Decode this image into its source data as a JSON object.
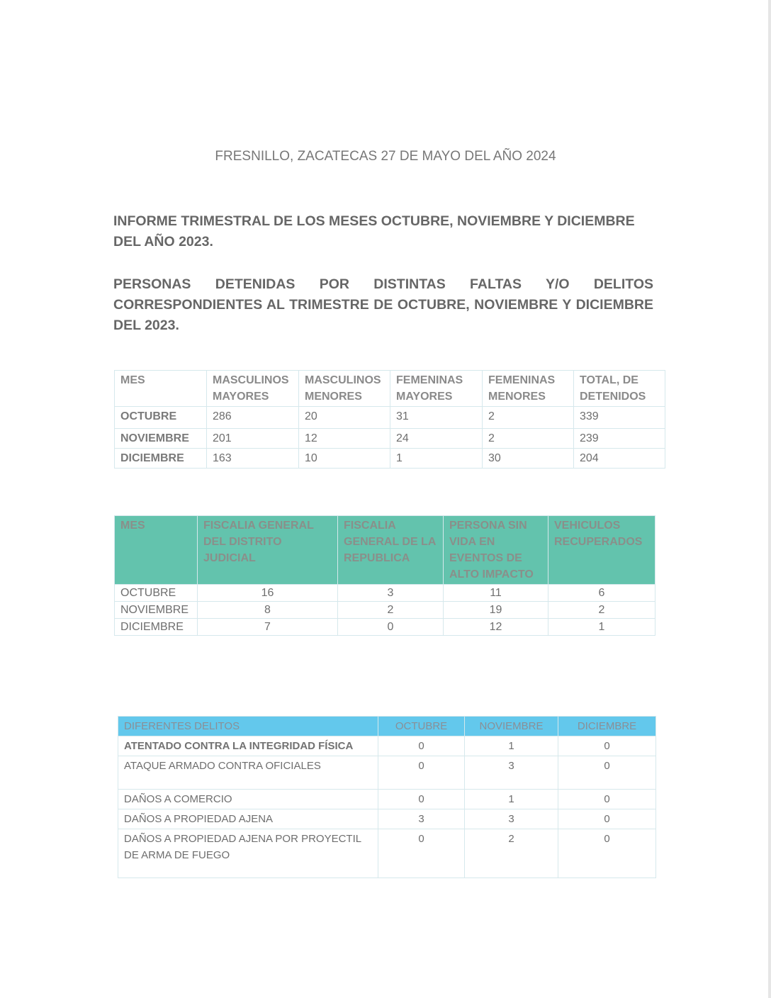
{
  "header": {
    "place_date": "FRESNILLO, ZACATECAS 27 DE MAYO DEL AÑO 2024",
    "heading_1": "INFORME TRIMESTRAL DE LOS MESES OCTUBRE, NOVIEMBRE Y DICIEMBRE DEL AÑO 2023.",
    "heading_2": "PERSONAS DETENIDAS POR DISTINTAS FALTAS Y/O DELITOS CORRESPONDIENTES AL TRIMESTRE DE OCTUBRE, NOVIEMBRE Y DICIEMBRE DEL 2023."
  },
  "table_detenidos": {
    "columns": [
      "MES",
      "MASCULINOS MAYORES",
      "MASCULINOS MENORES",
      "FEMENINAS MAYORES",
      "FEMENINAS MENORES",
      "TOTAL, DE DETENIDOS"
    ],
    "rows": [
      [
        "OCTUBRE",
        "286",
        "20",
        "31",
        "2",
        "339"
      ],
      [
        "NOVIEMBRE",
        "201",
        "12",
        "24",
        "2",
        "239"
      ],
      [
        "DICIEMBRE",
        "163",
        "10",
        "1",
        "30",
        "204"
      ]
    ]
  },
  "table_fiscalia": {
    "header_color": "#63c3ad",
    "columns": [
      "MES",
      "FISCALIA GENERAL DEL DISTRITO JUDICIAL",
      "FISCALIA GENERAL DE LA REPUBLICA",
      "PERSONA SIN VIDA EN EVENTOS DE ALTO IMPACTO",
      "VEHICULOS RECUPERADOS"
    ],
    "rows": [
      [
        "OCTUBRE",
        "16",
        "3",
        "11",
        "6"
      ],
      [
        "NOVIEMBRE",
        "8",
        "2",
        "19",
        "2"
      ],
      [
        "DICIEMBRE",
        "7",
        "0",
        "12",
        "1"
      ]
    ]
  },
  "table_delitos": {
    "header_color": "#63c8ec",
    "columns": [
      "DIFERENTES DELITOS",
      "OCTUBRE",
      "NOVIEMBRE",
      "DICIEMBRE"
    ],
    "rows": [
      [
        "ATENTADO CONTRA LA INTEGRIDAD FÍSICA",
        "0",
        "1",
        "0"
      ],
      [
        "ATAQUE ARMADO CONTRA OFICIALES",
        "0",
        "3",
        "0"
      ],
      [
        "DAÑOS A COMERCIO",
        "0",
        "1",
        "0"
      ],
      [
        "DAÑOS A PROPIEDAD AJENA",
        "3",
        "3",
        "0"
      ],
      [
        "DAÑOS A PROPIEDAD AJENA POR PROYECTIL DE ARMA DE FUEGO",
        "0",
        "2",
        "0"
      ]
    ]
  }
}
